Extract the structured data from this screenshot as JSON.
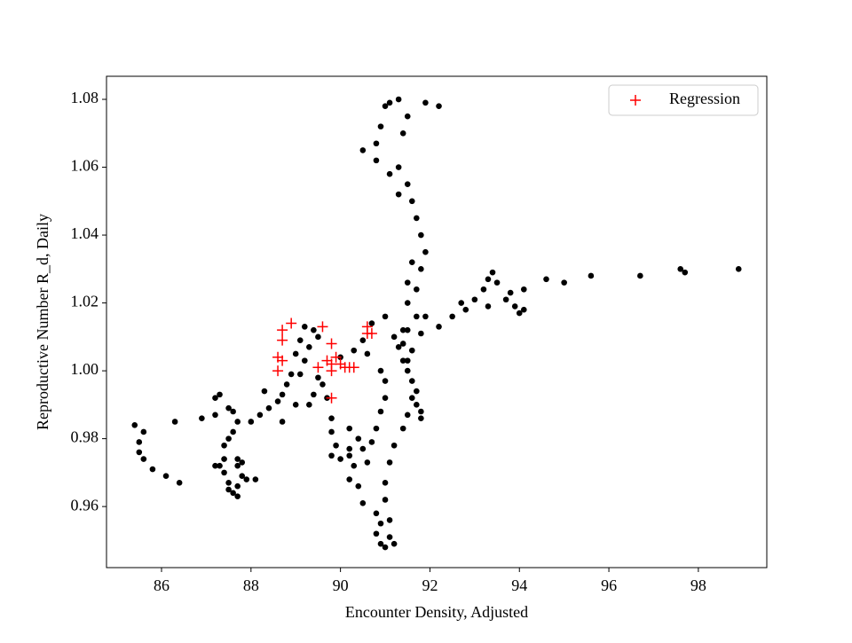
{
  "chart_data": {
    "type": "scatter",
    "x_label": "Encounter Density, Adjusted",
    "y_label": "Reproductive Number R_d, Daily",
    "xlim": [
      84.77,
      99.53
    ],
    "ylim": [
      0.942,
      1.0868
    ],
    "xticks": [
      86,
      88,
      90,
      92,
      94,
      96,
      98
    ],
    "yticks": [
      0.96,
      0.98,
      {
        "value": 1,
        "label": "1.00"
      },
      1.02,
      1.04,
      1.06,
      1.08
    ],
    "legend": "upper right",
    "series": [
      {
        "color": "#000000",
        "marker": "circle",
        "x": [
          85.4,
          85.6,
          85.5,
          85.5,
          85.6,
          85.8,
          86.1,
          86.4,
          86.3,
          86.9,
          87.2,
          87.2,
          87.3,
          87.5,
          87.6,
          87.7,
          87.6,
          87.5,
          87.4,
          87.4,
          87.3,
          87.4,
          87.5,
          87.5,
          87.6,
          87.7,
          87.7,
          87.8,
          87.7,
          87.7,
          87.8,
          87.9,
          88.1,
          87.2,
          88.0,
          88.2,
          88.3,
          88.4,
          88.6,
          88.7,
          88.7,
          88.8,
          88.9,
          89.0,
          89.1,
          89.2,
          89.4,
          89.5,
          89.3,
          89.2,
          89.1,
          89.0,
          89.3,
          89.4,
          89.5,
          89.6,
          89.7,
          89.8,
          89.8,
          89.9,
          89.8,
          90.0,
          90.2,
          90.3,
          90.2,
          90.4,
          90.5,
          90.8,
          90.9,
          90.8,
          90.9,
          91.0,
          91.2,
          91.1,
          91.1,
          91.0,
          91.0,
          91.1,
          91.2,
          91.4,
          91.5,
          91.6,
          91.8,
          91.8,
          91.7,
          91.7,
          91.6,
          91.5,
          91.4,
          91.3,
          91.2,
          91.4,
          91.7,
          91.9,
          91.8,
          91.6,
          91.5,
          91.4,
          91.5,
          91.7,
          91.8,
          91.9,
          91.8,
          91.7,
          91.6,
          91.5,
          91.3,
          91.4,
          91.5,
          91.3,
          91.1,
          91.0,
          90.9,
          90.8,
          90.5,
          90.8,
          91.1,
          91.3,
          92.2,
          91.9,
          91.6,
          91.5,
          91.5,
          91.0,
          90.7,
          90.5,
          90.3,
          90.0,
          90.6,
          90.9,
          91.0,
          91.0,
          90.9,
          90.8,
          90.7,
          90.5,
          90.4,
          90.2,
          90.6,
          90.2,
          92.2,
          92.5,
          92.7,
          93.0,
          93.2,
          93.3,
          93.4,
          93.5,
          93.7,
          93.9,
          94.0,
          94.1,
          94.1,
          94.6,
          95.0,
          95.6,
          96.7,
          97.6,
          97.7,
          98.9,
          92.8,
          93.3,
          93.8
        ],
        "values": [
          0.984,
          0.982,
          0.979,
          0.976,
          0.974,
          0.971,
          0.969,
          0.967,
          0.985,
          0.986,
          0.987,
          0.992,
          0.993,
          0.989,
          0.988,
          0.985,
          0.982,
          0.98,
          0.978,
          0.974,
          0.972,
          0.97,
          0.967,
          0.965,
          0.964,
          0.963,
          0.966,
          0.969,
          0.972,
          0.974,
          0.973,
          0.968,
          0.968,
          0.972,
          0.985,
          0.987,
          0.994,
          0.989,
          0.991,
          0.993,
          0.985,
          0.996,
          0.999,
          1.005,
          1.009,
          1.013,
          1.012,
          1.01,
          1.007,
          1.003,
          0.999,
          0.99,
          0.99,
          0.993,
          0.998,
          0.996,
          0.992,
          0.986,
          0.982,
          0.978,
          0.975,
          0.974,
          0.977,
          0.972,
          0.968,
          0.966,
          0.961,
          0.958,
          0.955,
          0.952,
          0.949,
          0.948,
          0.949,
          0.951,
          0.956,
          0.962,
          0.967,
          0.973,
          0.978,
          0.983,
          0.987,
          0.992,
          0.988,
          0.986,
          0.99,
          0.994,
          0.997,
          1.0,
          1.003,
          1.007,
          1.01,
          1.012,
          1.016,
          1.016,
          1.011,
          1.006,
          1.003,
          1.008,
          1.012,
          1.024,
          1.03,
          1.035,
          1.04,
          1.045,
          1.05,
          1.055,
          1.06,
          1.07,
          1.075,
          1.08,
          1.079,
          1.078,
          1.072,
          1.067,
          1.065,
          1.062,
          1.058,
          1.052,
          1.078,
          1.079,
          1.032,
          1.026,
          1.02,
          1.016,
          1.014,
          1.009,
          1.006,
          1.004,
          1.005,
          1.0,
          0.997,
          0.992,
          0.988,
          0.983,
          0.979,
          0.977,
          0.98,
          0.983,
          0.973,
          0.975,
          1.013,
          1.016,
          1.02,
          1.021,
          1.024,
          1.027,
          1.029,
          1.026,
          1.021,
          1.019,
          1.017,
          1.018,
          1.024,
          1.027,
          1.026,
          1.028,
          1.028,
          1.03,
          1.029,
          1.03,
          1.018,
          1.019,
          1.023
        ]
      },
      {
        "name": "Regression",
        "color": "#ff0000",
        "marker": "plus",
        "x": [
          88.7,
          88.7,
          88.9,
          88.6,
          88.7,
          88.6,
          89.6,
          89.7,
          89.8,
          89.8,
          89.9,
          90.0,
          90.2,
          89.8,
          89.8,
          90.6,
          90.7,
          90.6,
          89.5,
          90.1,
          90.3
        ],
        "values": [
          1.012,
          1.009,
          1.014,
          1.004,
          1.003,
          1.0,
          1.013,
          1.003,
          1.002,
          1.0,
          1.004,
          1.002,
          1.001,
          0.992,
          1.008,
          1.013,
          1.011,
          1.011,
          1.001,
          1.001,
          1.001
        ]
      }
    ]
  }
}
